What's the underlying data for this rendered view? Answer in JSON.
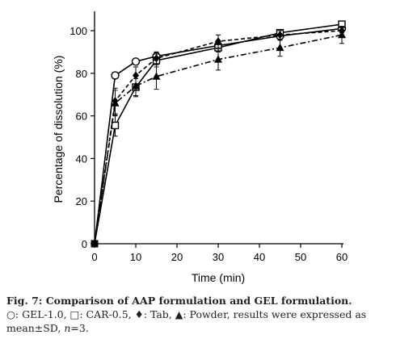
{
  "chart_data": {
    "type": "line",
    "xlabel": "Time (min)",
    "ylabel": "Percentage of dissolution (%)",
    "xlim": [
      0,
      60
    ],
    "ylim": [
      0,
      100
    ],
    "x_ticks": [
      0,
      10,
      20,
      30,
      40,
      50,
      60
    ],
    "y_ticks": [
      0,
      20,
      40,
      60,
      80,
      100
    ],
    "grid": false,
    "legend": "none",
    "series": [
      {
        "marker": "circle-open",
        "line": "solid",
        "x": [
          0,
          5,
          10,
          15,
          30,
          45,
          60
        ],
        "y": [
          0,
          79,
          85.5,
          88,
          93,
          97.5,
          101
        ],
        "err": [
          0,
          1,
          1.5,
          2,
          2,
          2,
          2
        ]
      },
      {
        "marker": "square-open",
        "line": "solid",
        "x": [
          0,
          5,
          10,
          15,
          30,
          45,
          60
        ],
        "y": [
          0,
          55.5,
          73.5,
          86,
          92,
          99,
          103
        ],
        "err": [
          0,
          5,
          4,
          3,
          2,
          1.5,
          1.5
        ]
      },
      {
        "marker": "diamond-filled",
        "line": "dashed",
        "x": [
          0,
          5,
          10,
          15,
          30,
          45,
          60
        ],
        "y": [
          0,
          67,
          79,
          87,
          95,
          98,
          100
        ],
        "err": [
          0,
          6,
          4,
          3,
          3,
          2,
          2
        ]
      },
      {
        "marker": "triangle-filled",
        "line": "dashdot",
        "x": [
          0,
          5,
          10,
          15,
          30,
          45,
          60
        ],
        "y": [
          0,
          66,
          74,
          78.5,
          86.5,
          92,
          98
        ],
        "err": [
          0,
          6,
          5,
          6,
          5,
          4,
          4
        ]
      }
    ]
  },
  "caption": {
    "title": "Fig. 7: Comparison of AAP formulation and GEL formulation.",
    "body_part1": "○: GEL-1.0, □: CAR-0.5, ♦: Tab, ▲: Powder, results were expressed as mean±SD, ",
    "n_symbol": "n",
    "body_part2": "=3."
  }
}
